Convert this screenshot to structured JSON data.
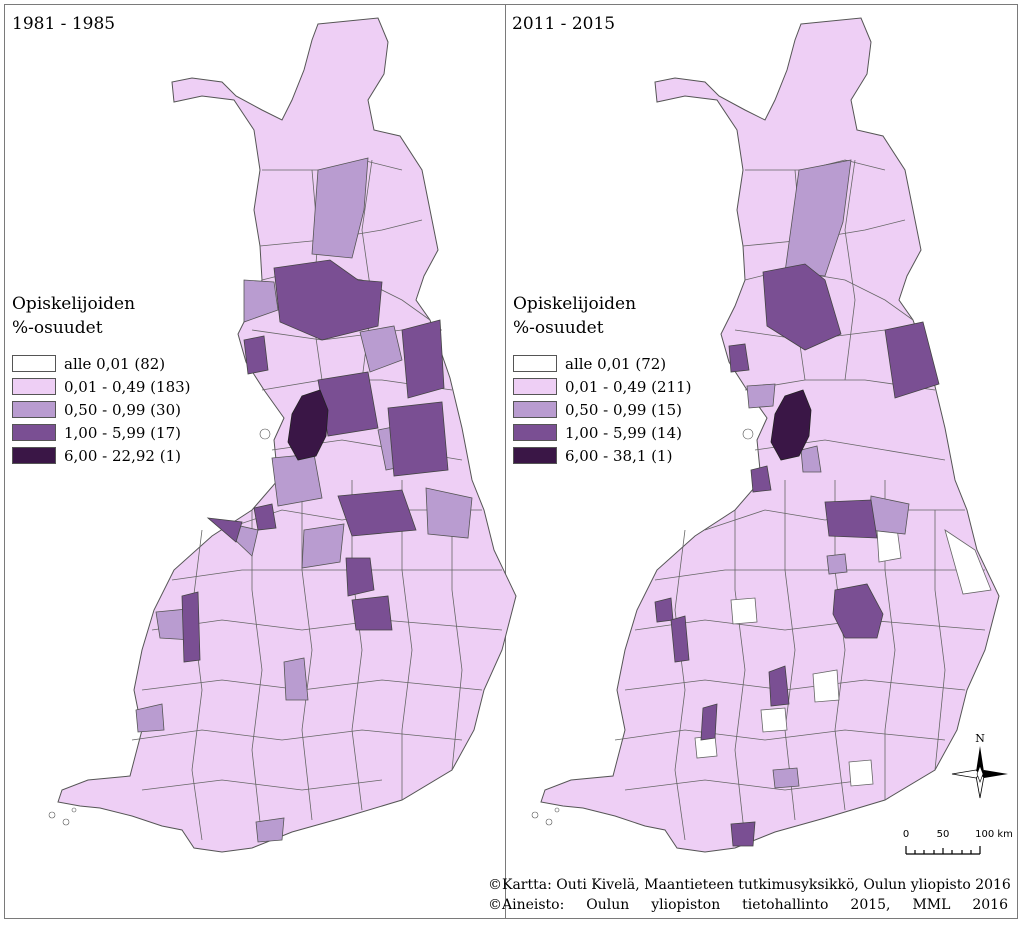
{
  "panels": [
    {
      "period": "1981 - 1985",
      "legend_title_line1": "Opiskelijoiden",
      "legend_title_line2": "%-osuudet",
      "classes": [
        {
          "label": "alle 0,01 (82)",
          "color": "#ffffff"
        },
        {
          "label": "0,01 - 0,49 (183)",
          "color": "#eecff5"
        },
        {
          "label": "0,50 - 0,99 (30)",
          "color": "#b99cd0"
        },
        {
          "label": "1,00 - 5,99 (17)",
          "color": "#7a4f93"
        },
        {
          "label": "6,00 - 22,92 (1)",
          "color": "#3a1646"
        }
      ]
    },
    {
      "period": "2011 - 2015",
      "legend_title_line1": "Opiskelijoiden",
      "legend_title_line2": "%-osuudet",
      "classes": [
        {
          "label": "alle 0,01 (72)",
          "color": "#ffffff"
        },
        {
          "label": "0,01 - 0,49 (211)",
          "color": "#eecff5"
        },
        {
          "label": "0,50 - 0,99 (15)",
          "color": "#b99cd0"
        },
        {
          "label": "1,00 - 5,99 (14)",
          "color": "#7a4f93"
        },
        {
          "label": "6,00 - 38,1 (1)",
          "color": "#3a1646"
        }
      ]
    }
  ],
  "north_label": "N",
  "scale": {
    "ticks": [
      "0",
      "50",
      "100 km"
    ]
  },
  "credits": {
    "map": "©Kartta: Outi Kivelä, Maantieteen tutkimusyksikkö, Oulun yliopisto 2016",
    "data": "©Aineisto: Oulun yliopiston tietohallinto 2015, MML 2016"
  }
}
